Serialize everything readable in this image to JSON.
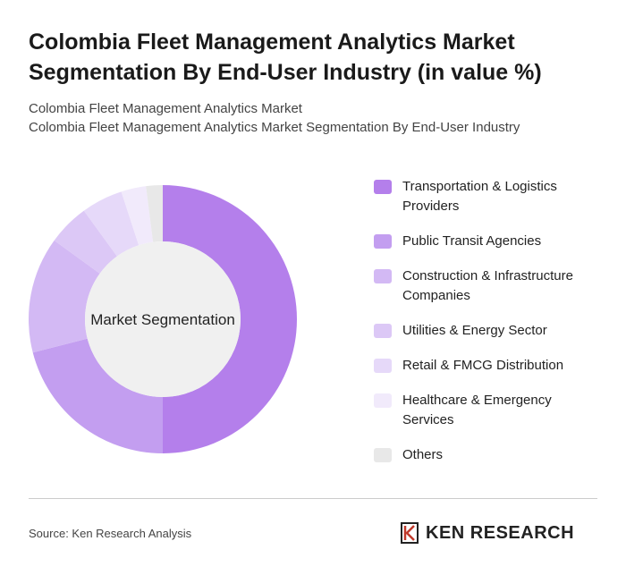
{
  "chart_data": {
    "type": "donut",
    "title": "Colombia Fleet Management Analytics Market Segmentation By End-User Industry (in value %)",
    "subtitle": [
      "Colombia Fleet Management Analytics Market",
      "Colombia Fleet Management Analytics Market Segmentation By End-User Industry"
    ],
    "center_label": "Market Segmentation",
    "categories": [
      "Transportation & Logistics Providers",
      "Public Transit Agencies",
      "Construction & Infrastructure Companies",
      "Utilities & Energy Sector",
      "Retail & FMCG Distribution",
      "Healthcare & Emergency Services",
      "Others"
    ],
    "values": [
      50,
      21,
      14,
      5,
      5,
      3,
      2
    ],
    "colors": [
      "#b47feb",
      "#c39ef0",
      "#d3b9f4",
      "#dcc8f6",
      "#e6d9f9",
      "#f1eafb",
      "#e8e8e8"
    ],
    "source": "Source: Ken Research Analysis",
    "logo_text": "KEN RESEARCH"
  }
}
